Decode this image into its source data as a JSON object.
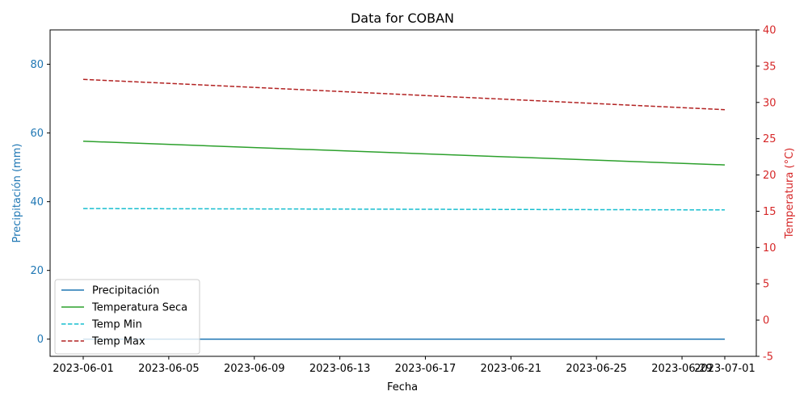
{
  "chart_data": {
    "type": "line",
    "title": "Data for COBAN",
    "xlabel": "Fecha",
    "ylabel_left": "Precipitación (mm)",
    "ylabel_right": "Temperatura (°C)",
    "x_type": "date",
    "x_start": "2023-06-01",
    "x_end": "2023-07-01",
    "x_ticks": [
      "2023-06-01",
      "2023-06-05",
      "2023-06-09",
      "2023-06-13",
      "2023-06-17",
      "2023-06-21",
      "2023-06-25",
      "2023-06-29",
      "2023-07-01"
    ],
    "ylim_left": [
      -5,
      90
    ],
    "yticks_left": [
      0,
      20,
      40,
      60,
      80
    ],
    "ylim_right": [
      -5,
      40
    ],
    "yticks_right": [
      -5,
      0,
      5,
      10,
      15,
      20,
      25,
      30,
      35,
      40
    ],
    "left_axis_color": "#1f77b4",
    "right_axis_color": "#d62728",
    "grid": false,
    "legend_position": "lower-left",
    "series": [
      {
        "name": "Precipitación",
        "axis": "left",
        "color": "#1f77b4",
        "dash": "solid",
        "points": [
          {
            "x": "2023-06-01",
            "y": 0
          },
          {
            "x": "2023-07-01",
            "y": 0
          }
        ]
      },
      {
        "name": "Temperatura Seca",
        "axis": "left",
        "color": "#2ca02c",
        "dash": "solid",
        "points": [
          {
            "x": "2023-06-01",
            "y": 57.6
          },
          {
            "x": "2023-07-01",
            "y": 50.7
          }
        ]
      },
      {
        "name": "Temp Min",
        "axis": "left",
        "color": "#17becf",
        "dash": "dashed",
        "points": [
          {
            "x": "2023-06-01",
            "y": 38.0
          },
          {
            "x": "2023-07-01",
            "y": 37.6
          }
        ]
      },
      {
        "name": "Temp Max",
        "axis": "left",
        "color": "#b22222",
        "dash": "dashed",
        "points": [
          {
            "x": "2023-06-01",
            "y": 75.6
          },
          {
            "x": "2023-07-01",
            "y": 66.8
          }
        ]
      }
    ]
  }
}
